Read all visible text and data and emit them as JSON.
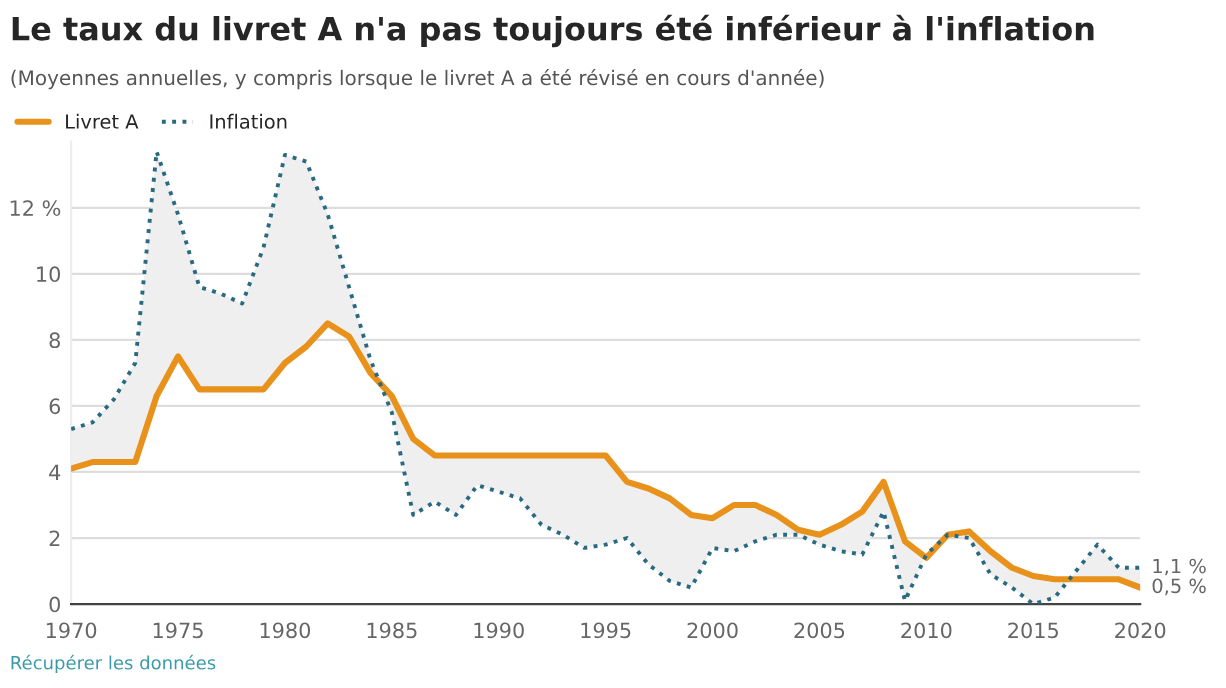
{
  "chart_data": {
    "type": "line",
    "title": "Le taux du livret A n'a pas toujours été inférieur à l'inflation",
    "subtitle": "(Moyennes annuelles, y compris lorsque le livret A a été révisé en cours d'année)",
    "x": [
      1970,
      1971,
      1972,
      1973,
      1974,
      1975,
      1976,
      1977,
      1978,
      1979,
      1980,
      1981,
      1982,
      1983,
      1984,
      1985,
      1986,
      1987,
      1988,
      1989,
      1990,
      1991,
      1992,
      1993,
      1994,
      1995,
      1996,
      1997,
      1998,
      1999,
      2000,
      2001,
      2002,
      2003,
      2004,
      2005,
      2006,
      2007,
      2008,
      2009,
      2010,
      2011,
      2012,
      2013,
      2014,
      2015,
      2016,
      2017,
      2018,
      2019,
      2020
    ],
    "series": [
      {
        "name": "Livret A",
        "color": "#e8921c",
        "line_style": "solid",
        "values": [
          4.1,
          4.3,
          4.3,
          4.3,
          6.3,
          7.5,
          6.5,
          6.5,
          6.5,
          6.5,
          7.3,
          7.8,
          8.5,
          8.1,
          7.0,
          6.3,
          5.0,
          4.5,
          4.5,
          4.5,
          4.5,
          4.5,
          4.5,
          4.5,
          4.5,
          4.5,
          3.7,
          3.5,
          3.2,
          2.7,
          2.6,
          3.0,
          3.0,
          2.7,
          2.25,
          2.1,
          2.4,
          2.8,
          3.7,
          1.9,
          1.4,
          2.1,
          2.2,
          1.6,
          1.1,
          0.85,
          0.75,
          0.75,
          0.75,
          0.75,
          0.5
        ]
      },
      {
        "name": "Inflation",
        "color": "#2a6a80",
        "line_style": "dotted",
        "values": [
          5.3,
          5.5,
          6.2,
          7.3,
          13.7,
          11.8,
          9.6,
          9.4,
          9.1,
          10.8,
          13.6,
          13.4,
          11.8,
          9.6,
          7.4,
          5.8,
          2.7,
          3.1,
          2.7,
          3.6,
          3.4,
          3.2,
          2.4,
          2.1,
          1.7,
          1.8,
          2.0,
          1.2,
          0.7,
          0.5,
          1.7,
          1.6,
          1.9,
          2.1,
          2.1,
          1.8,
          1.6,
          1.5,
          2.8,
          0.1,
          1.5,
          2.1,
          2.0,
          0.9,
          0.5,
          0.0,
          0.2,
          1.0,
          1.8,
          1.1,
          1.1
        ]
      }
    ],
    "xlim": [
      1970,
      2020
    ],
    "xticks": [
      1970,
      1975,
      1980,
      1985,
      1990,
      1995,
      2000,
      2005,
      2010,
      2015,
      2020
    ],
    "ylim": [
      0,
      14
    ],
    "yticks": [
      0,
      2,
      4,
      6,
      8,
      10,
      {
        "value": 12,
        "label": "12 %"
      }
    ],
    "grid": "y",
    "legend": "top left",
    "marker": "none",
    "annotations": [
      {
        "text": "1,1 %",
        "x": 2020,
        "y": 1.1
      },
      {
        "text": "0,5 %",
        "x": 2020,
        "y": 0.5
      },
      "Récupérer les données"
    ]
  }
}
